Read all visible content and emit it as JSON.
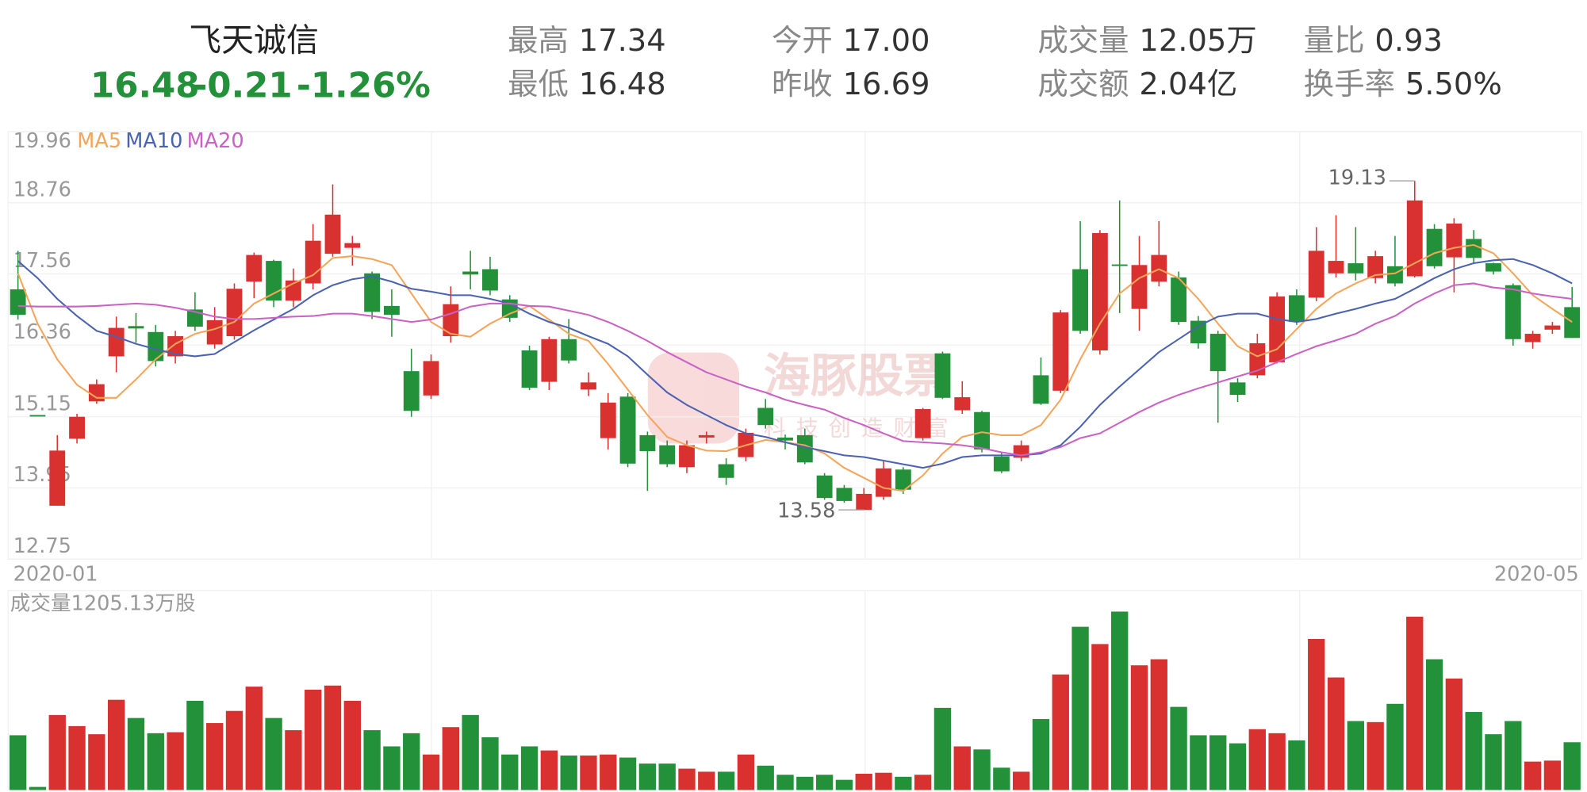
{
  "header": {
    "name": "飞天诚信",
    "price": "16.48",
    "change": "-0.21",
    "change_pct": "-1.26%",
    "stats": [
      {
        "label": "最高",
        "value": "17.34"
      },
      {
        "label": "最低",
        "value": "16.48"
      },
      {
        "label": "今开",
        "value": "17.00"
      },
      {
        "label": "昨收",
        "value": "16.69"
      },
      {
        "label": "成交量",
        "value": "12.05万"
      },
      {
        "label": "成交额",
        "value": "2.04亿"
      },
      {
        "label": "量比",
        "value": "0.93"
      },
      {
        "label": "换手率",
        "value": "5.50%"
      }
    ]
  },
  "watermark": "海豚股票",
  "watermark_sub": "科技创造财富",
  "chart_data": {
    "type": "candlestick",
    "up_color": "#d9312f",
    "down_color": "#23903a",
    "ylim": [
      12.75,
      19.96
    ],
    "yticks": [
      19.96,
      18.76,
      17.56,
      16.36,
      15.15,
      13.95,
      12.75
    ],
    "grid": true,
    "volume_label": "成交量1205.13万股",
    "volume_ylim": [
      0,
      5040
    ],
    "categories": [
      "2020-01",
      null,
      null,
      null,
      null,
      null,
      null,
      null,
      null,
      null,
      null,
      null,
      null,
      null,
      null,
      null,
      null,
      null,
      null,
      null,
      null,
      null,
      null,
      null,
      null,
      null,
      null,
      null,
      null,
      null,
      null,
      null,
      null,
      null,
      null,
      null,
      null,
      null,
      null,
      null,
      null,
      null,
      null,
      null,
      null,
      null,
      null,
      null,
      null,
      null,
      null,
      null,
      null,
      null,
      null,
      null,
      null,
      null,
      null,
      null,
      null,
      null,
      null,
      null,
      null,
      null,
      null,
      null,
      null,
      null,
      null,
      null,
      null,
      null,
      null,
      null,
      null,
      null,
      null,
      "2020-05"
    ],
    "open": [
      17.3,
      15.18,
      13.65,
      14.78,
      15.41,
      16.17,
      16.68,
      16.58,
      16.17,
      16.96,
      16.37,
      16.51,
      17.43,
      17.78,
      17.11,
      17.4,
      17.9,
      18.0,
      17.57,
      17.02,
      15.92,
      15.51,
      16.51,
      17.6,
      17.64,
      17.13,
      16.27,
      15.74,
      16.46,
      15.61,
      14.79,
      15.49,
      14.84,
      14.67,
      14.3,
      14.8,
      14.35,
      14.47,
      15.3,
      14.8,
      14.84,
      14.16,
      13.95,
      13.58,
      13.8,
      14.26,
      14.79,
      16.22,
      15.26,
      15.23,
      14.48,
      14.46,
      15.85,
      15.59,
      17.64,
      16.27,
      17.72,
      16.97,
      17.43,
      17.5,
      16.77,
      16.55,
      15.73,
      15.85,
      16.07,
      17.2,
      17.16,
      17.57,
      17.74,
      17.49,
      17.69,
      17.52,
      18.32,
      17.84,
      18.15,
      17.74,
      17.37,
      16.41,
      16.62,
      17.0
    ],
    "high": [
      17.95,
      15.18,
      14.84,
      15.2,
      15.78,
      16.84,
      16.9,
      16.7,
      16.6,
      17.25,
      17.0,
      17.4,
      17.92,
      17.8,
      17.65,
      18.4,
      19.07,
      18.2,
      17.6,
      17.3,
      16.3,
      16.2,
      17.35,
      17.95,
      17.85,
      17.2,
      16.35,
      16.5,
      16.8,
      15.9,
      15.55,
      15.55,
      14.9,
      14.75,
      14.75,
      14.9,
      14.45,
      14.95,
      15.45,
      14.85,
      14.95,
      14.2,
      14.0,
      13.95,
      14.4,
      14.3,
      15.3,
      16.25,
      15.75,
      15.25,
      14.55,
      14.75,
      16.15,
      16.95,
      18.45,
      18.3,
      18.8,
      18.2,
      18.45,
      17.6,
      16.85,
      16.6,
      15.8,
      16.55,
      17.25,
      17.3,
      18.35,
      18.55,
      18.35,
      17.95,
      18.2,
      19.13,
      18.4,
      18.5,
      18.3,
      17.75,
      17.4,
      16.6,
      16.75,
      17.34
    ],
    "low": [
      16.79,
      15.18,
      13.65,
      14.7,
      15.37,
      15.9,
      16.4,
      16.0,
      16.05,
      16.6,
      16.3,
      16.45,
      17.15,
      17.0,
      17.0,
      17.3,
      17.85,
      17.7,
      16.8,
      16.5,
      15.15,
      15.45,
      16.4,
      17.3,
      17.2,
      16.75,
      15.6,
      15.6,
      16.05,
      15.5,
      14.6,
      14.3,
      13.9,
      14.3,
      14.2,
      14.7,
      14.0,
      14.4,
      14.95,
      14.6,
      14.35,
      13.75,
      13.7,
      13.58,
      13.75,
      13.85,
      14.75,
      15.45,
      15.2,
      14.55,
      14.2,
      14.4,
      15.35,
      15.55,
      16.55,
      16.2,
      16.9,
      16.6,
      17.35,
      16.7,
      16.3,
      15.05,
      15.4,
      15.8,
      16.05,
      16.7,
      17.1,
      17.5,
      17.45,
      17.4,
      17.35,
      17.5,
      17.65,
      17.25,
      17.75,
      17.55,
      16.35,
      16.3,
      16.55,
      16.48
    ],
    "close": [
      16.87,
      15.18,
      14.58,
      15.15,
      15.7,
      16.65,
      16.64,
      16.09,
      16.51,
      16.67,
      16.78,
      17.31,
      17.88,
      17.11,
      17.45,
      18.12,
      18.56,
      18.08,
      16.92,
      16.87,
      15.25,
      16.09,
      17.05,
      17.55,
      17.28,
      16.82,
      15.64,
      16.46,
      16.1,
      15.73,
      15.39,
      14.36,
      14.57,
      14.35,
      14.67,
      14.84,
      14.12,
      14.88,
      15.01,
      14.75,
      14.38,
      13.78,
      13.73,
      13.85,
      14.28,
      13.92,
      15.28,
      15.47,
      15.48,
      14.6,
      14.23,
      14.67,
      15.37,
      16.91,
      16.6,
      18.25,
      17.7,
      17.71,
      17.88,
      16.75,
      16.39,
      15.92,
      15.52,
      16.39,
      17.18,
      16.75,
      17.95,
      17.78,
      17.57,
      17.86,
      17.4,
      18.8,
      17.69,
      18.41,
      17.83,
      17.6,
      16.46,
      16.55,
      16.69,
      16.48
    ],
    "volume": [
      1382,
      77,
      1894,
      1613,
      1408,
      2278,
      1818,
      1434,
      1459,
      2253,
      1690,
      1997,
      2611,
      1818,
      1510,
      2534,
      2637,
      2253,
      1510,
      1101,
      1434,
      896,
      1587,
      1894,
      1331,
      896,
      1101,
      998,
      870,
      870,
      896,
      819,
      666,
      666,
      538,
      461,
      461,
      896,
      614,
      384,
      333,
      384,
      256,
      410,
      435,
      333,
      384,
      2074,
      1101,
      1024,
      563,
      461,
      1792,
      2918,
      4122,
      3686,
      4506,
      3149,
      3302,
      2099,
      1382,
      1382,
      1178,
      1536,
      1434,
      1254,
      3814,
      2842,
      1741,
      1715,
      2176,
      4378,
      3302,
      2816,
      1971,
      1408,
      1741,
      717,
      742,
      1205.13
    ],
    "series": [
      {
        "name": "MA5",
        "color": "#f5a55a",
        "values": [
          17.57,
          16.72,
          16.12,
          15.69,
          15.47,
          15.47,
          15.78,
          16.12,
          16.38,
          16.55,
          16.63,
          16.75,
          17.06,
          17.23,
          17.4,
          17.54,
          17.83,
          17.86,
          17.81,
          17.71,
          17.23,
          16.75,
          16.55,
          16.5,
          16.72,
          16.89,
          17.02,
          16.79,
          16.55,
          16.43,
          16.04,
          15.61,
          15.18,
          14.81,
          14.67,
          14.58,
          14.57,
          14.67,
          14.76,
          14.72,
          14.67,
          14.53,
          14.29,
          14.12,
          13.95,
          13.9,
          14.16,
          14.53,
          14.81,
          14.89,
          14.84,
          14.84,
          15.01,
          15.44,
          16.12,
          16.72,
          17.23,
          17.49,
          17.64,
          17.49,
          17.14,
          16.72,
          16.34,
          16.17,
          16.29,
          16.63,
          16.97,
          17.23,
          17.4,
          17.54,
          17.57,
          17.74,
          17.91,
          18.0,
          18.05,
          17.91,
          17.57,
          17.2,
          16.97,
          16.75
        ]
      },
      {
        "name": "MA10",
        "color": "#4a62b0",
        "values": [
          17.78,
          17.49,
          17.14,
          16.85,
          16.6,
          16.5,
          16.38,
          16.29,
          16.21,
          16.17,
          16.21,
          16.41,
          16.61,
          16.79,
          16.97,
          17.2,
          17.37,
          17.47,
          17.52,
          17.43,
          17.31,
          17.26,
          17.2,
          17.2,
          17.14,
          17.06,
          16.89,
          16.75,
          16.65,
          16.51,
          16.38,
          16.17,
          15.86,
          15.56,
          15.35,
          15.18,
          15.01,
          14.87,
          14.81,
          14.72,
          14.64,
          14.57,
          14.5,
          14.47,
          14.41,
          14.35,
          14.29,
          14.36,
          14.47,
          14.5,
          14.5,
          14.5,
          14.53,
          14.67,
          14.98,
          15.35,
          15.66,
          15.95,
          16.24,
          16.46,
          16.68,
          16.84,
          16.89,
          16.89,
          16.8,
          16.75,
          16.8,
          16.89,
          16.97,
          17.06,
          17.14,
          17.31,
          17.49,
          17.64,
          17.74,
          17.79,
          17.81,
          17.71,
          17.57,
          17.4
        ]
      },
      {
        "name": "MA20",
        "color": "#c962c4",
        "values": [
          17.02,
          17.01,
          17.01,
          17.01,
          17.02,
          17.04,
          17.06,
          17.04,
          16.99,
          16.92,
          16.84,
          16.8,
          16.8,
          16.82,
          16.84,
          16.85,
          16.89,
          16.89,
          16.85,
          16.8,
          16.75,
          16.79,
          16.89,
          17.01,
          17.06,
          17.06,
          17.02,
          17.01,
          16.94,
          16.87,
          16.75,
          16.6,
          16.43,
          16.24,
          16.07,
          15.9,
          15.78,
          15.66,
          15.56,
          15.44,
          15.35,
          15.27,
          15.13,
          15.01,
          14.87,
          14.74,
          14.72,
          14.7,
          14.67,
          14.62,
          14.55,
          14.5,
          14.55,
          14.64,
          14.79,
          14.87,
          15.05,
          15.23,
          15.39,
          15.52,
          15.63,
          15.73,
          15.83,
          15.93,
          16.07,
          16.21,
          16.34,
          16.44,
          16.55,
          16.72,
          16.85,
          17.06,
          17.23,
          17.37,
          17.4,
          17.33,
          17.3,
          17.23,
          17.18,
          17.14
        ]
      }
    ]
  }
}
